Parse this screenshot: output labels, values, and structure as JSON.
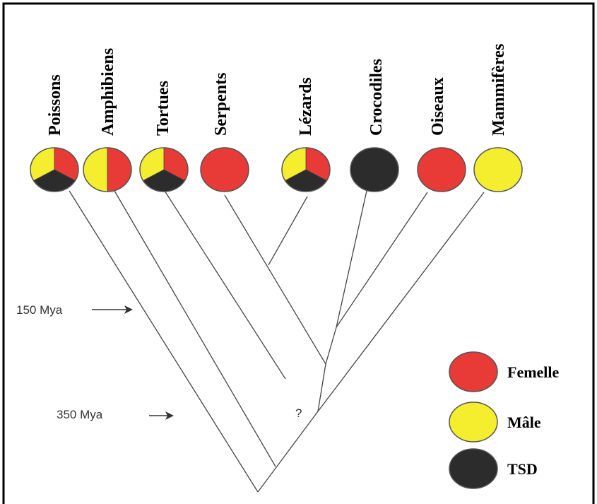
{
  "colors": {
    "female": "#e83a36",
    "male": "#f4ee2f",
    "tsd": "#2c2c2c",
    "frame": "#000000",
    "branch": "#444444"
  },
  "taxa": [
    {
      "name": "Poissons",
      "modes": [
        "female",
        "tsd",
        "male"
      ]
    },
    {
      "name": "Amphibiens",
      "modes": [
        "female",
        "male"
      ]
    },
    {
      "name": "Tortues",
      "modes": [
        "female",
        "tsd",
        "male"
      ]
    },
    {
      "name": "Serpents",
      "modes": [
        "female"
      ]
    },
    {
      "name": "Lézards",
      "modes": [
        "female",
        "tsd",
        "male"
      ]
    },
    {
      "name": "Crocodiles",
      "modes": [
        "tsd"
      ]
    },
    {
      "name": "Oiseaux",
      "modes": [
        "female"
      ]
    },
    {
      "name": "Mammifères",
      "modes": [
        "male"
      ]
    }
  ],
  "annotations": {
    "mya150": "150 Mya",
    "mya350": "350 Mya",
    "unknown": "?"
  },
  "legend": [
    {
      "key": "female",
      "label": "Femelle"
    },
    {
      "key": "male",
      "label": "Mâle"
    },
    {
      "key": "tsd",
      "label": "TSD"
    }
  ]
}
